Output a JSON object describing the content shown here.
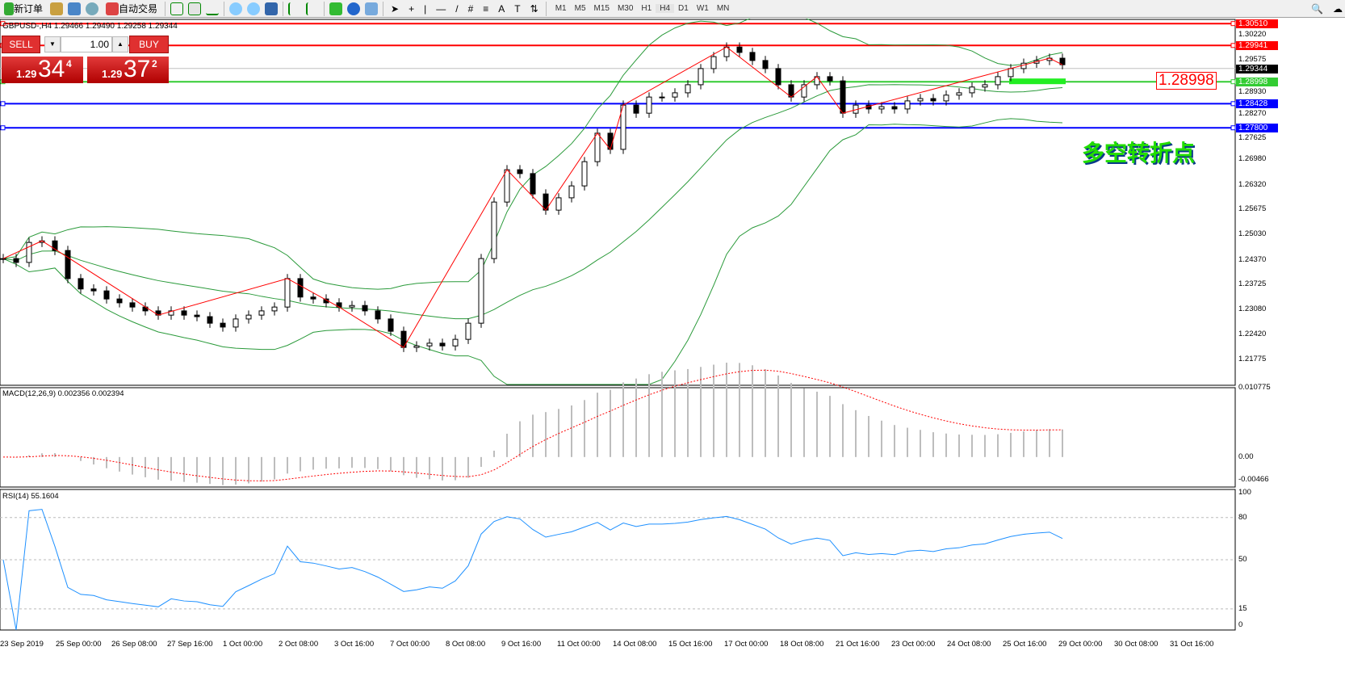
{
  "toolbar": {
    "new_order": "新订单",
    "auto_trading": "自动交易",
    "timeframes": [
      "M1",
      "M5",
      "M15",
      "M30",
      "H1",
      "H4",
      "D1",
      "W1",
      "MN"
    ],
    "active_timeframe": "H4"
  },
  "chart": {
    "title": "GBPUSD-,H4  1.29466 1.29490 1.29258 1.29344",
    "annotation": "多空转折点",
    "box_price": "1.28998"
  },
  "trade_panel": {
    "sell_label": "SELL",
    "buy_label": "BUY",
    "volume": "1.00",
    "sell_prefix": "1.29",
    "sell_big": "34",
    "sell_sup": "4",
    "buy_prefix": "1.29",
    "buy_big": "37",
    "buy_sup": "2"
  },
  "price_axis": {
    "ticks": [
      "1.30220",
      "1.29575",
      "1.28930",
      "1.28270",
      "1.27625",
      "1.26980",
      "1.26320",
      "1.25675",
      "1.25030",
      "1.24370",
      "1.23725",
      "1.23080",
      "1.22420",
      "1.21775"
    ]
  },
  "levels": [
    {
      "price": "1.30510",
      "color": "#ff0000"
    },
    {
      "price": "1.29941",
      "color": "#ff0000"
    },
    {
      "price": "1.29344",
      "color": "#000000"
    },
    {
      "price": "1.28998",
      "color": "#33cc33"
    },
    {
      "price": "1.28428",
      "color": "#0000ff"
    },
    {
      "price": "1.27800",
      "color": "#0000ff"
    }
  ],
  "closes": [
    1.244,
    1.243,
    1.2482,
    1.2486,
    1.2461,
    1.2388,
    1.2361,
    1.2356,
    1.2335,
    1.2325,
    1.2314,
    1.2304,
    1.2293,
    1.2304,
    1.2293,
    1.2289,
    1.2272,
    1.2262,
    1.2283,
    1.2293,
    1.2304,
    1.2314,
    1.2388,
    1.234,
    1.2335,
    1.2325,
    1.2314,
    1.2318,
    1.2304,
    1.2283,
    1.2251,
    1.2209,
    1.2213,
    1.222,
    1.2213,
    1.223,
    1.2272,
    1.244,
    1.2587,
    1.2671,
    1.2661,
    1.2608,
    1.2566,
    1.2598,
    1.2629,
    1.2692,
    1.2766,
    1.2724,
    1.2839,
    1.2818,
    1.286,
    1.286,
    1.2871,
    1.2892,
    1.2934,
    1.2965,
    1.299,
    1.2976,
    1.2955,
    1.2934,
    1.2892,
    1.286,
    1.2892,
    1.2913,
    1.2902,
    1.2818,
    1.2839,
    1.2829,
    1.2835,
    1.2829,
    1.285,
    1.2856,
    1.285,
    1.2865,
    1.2871,
    1.2886,
    1.2892,
    1.2913,
    1.2934,
    1.2948,
    1.2955,
    1.2961,
    1.2944
  ],
  "macd": {
    "label": "MACD(12,26,9) 0.002356 0.002394",
    "ticks": [
      "0.010775",
      "0.00",
      "-0.00466"
    ]
  },
  "rsi": {
    "label": "RSI(14) 55.1604",
    "ticks": [
      "100",
      "80",
      "50",
      "15",
      "0"
    ]
  },
  "time_axis": [
    "23 Sep 2019",
    "25 Sep 00:00",
    "26 Sep 08:00",
    "27 Sep 16:00",
    "1 Oct 00:00",
    "2 Oct 08:00",
    "3 Oct 16:00",
    "7 Oct 00:00",
    "8 Oct 08:00",
    "9 Oct 16:00",
    "11 Oct 00:00",
    "14 Oct 08:00",
    "15 Oct 16:00",
    "17 Oct 00:00",
    "18 Oct 08:00",
    "21 Oct 16:00",
    "23 Oct 00:00",
    "24 Oct 08:00",
    "25 Oct 16:00",
    "29 Oct 00:00",
    "30 Oct 08:00",
    "31 Oct 16:00"
  ]
}
